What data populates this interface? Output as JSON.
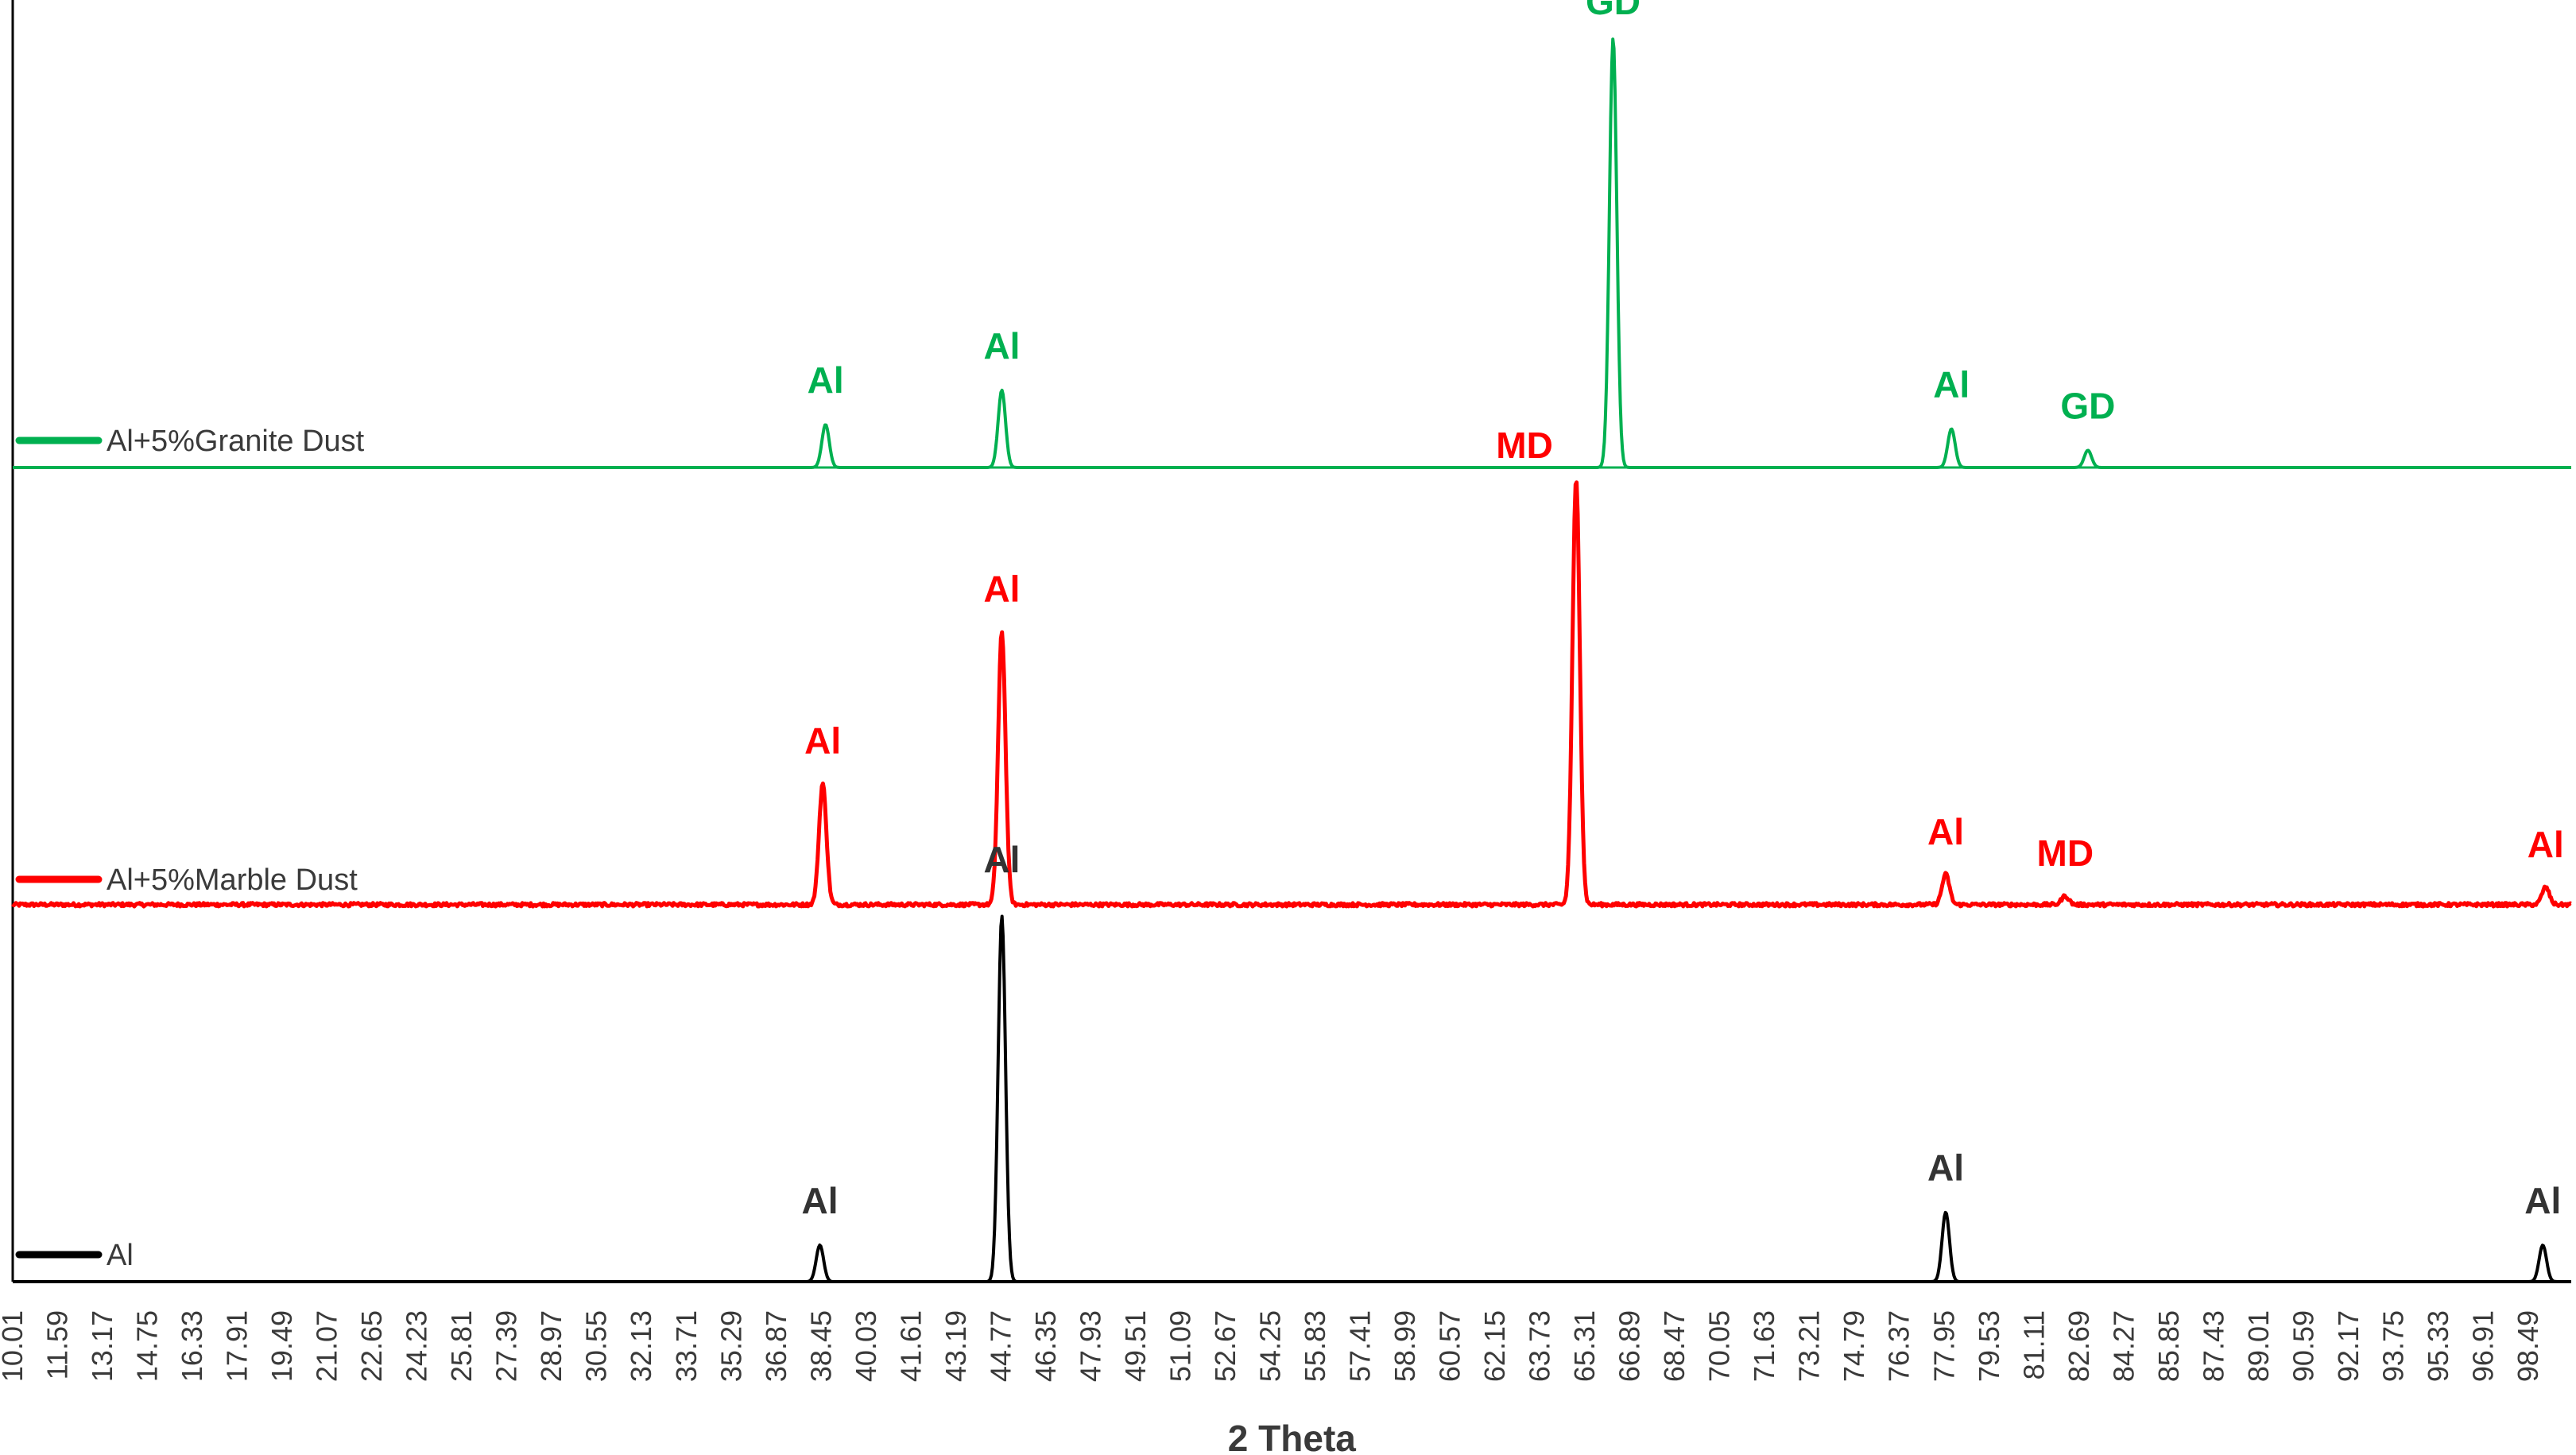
{
  "chart_data": {
    "type": "line",
    "xlabel": "2 Theta",
    "ylabel": "",
    "xlim": [
      10.01,
      100.0
    ],
    "x_tick_labels": [
      "10.01",
      "11.59",
      "13.17",
      "14.75",
      "16.33",
      "17.91",
      "19.49",
      "21.07",
      "22.65",
      "24.23",
      "25.81",
      "27.39",
      "28.97",
      "30.55",
      "32.13",
      "33.71",
      "35.29",
      "36.87",
      "38.45",
      "40.03",
      "41.61",
      "43.19",
      "44.77",
      "46.35",
      "47.93",
      "49.51",
      "51.09",
      "52.67",
      "54.25",
      "55.83",
      "57.41",
      "58.99",
      "60.57",
      "62.15",
      "63.73",
      "65.31",
      "66.89",
      "68.47",
      "70.05",
      "71.63",
      "73.21",
      "74.79",
      "76.37",
      "77.95",
      "79.53",
      "81.11",
      "82.69",
      "84.27",
      "85.85",
      "87.43",
      "89.01",
      "90.59",
      "92.17",
      "93.75",
      "95.33",
      "96.91",
      "98.49"
    ],
    "grid": false,
    "legend_position": "inside-left, one per trace",
    "series": [
      {
        "name": "Al+5%Granite Dust",
        "color": "#00b050",
        "noise": 0.0,
        "peaks": [
          {
            "x": 38.6,
            "height": 0.1,
            "label": "Al"
          },
          {
            "x": 44.8,
            "height": 0.18,
            "label": "Al"
          },
          {
            "x": 66.3,
            "height": 1.0,
            "label": "GD"
          },
          {
            "x": 78.2,
            "height": 0.09,
            "label": "Al"
          },
          {
            "x": 83.0,
            "height": 0.04,
            "label": "GD"
          }
        ]
      },
      {
        "name": "Al+5%Marble Dust",
        "color": "#ff0000",
        "noise": 0.008,
        "peaks": [
          {
            "x": 38.5,
            "height": 0.28,
            "label": "Al"
          },
          {
            "x": 44.8,
            "height": 0.63,
            "label": "Al"
          },
          {
            "x": 65.0,
            "height": 0.98,
            "label": "MD"
          },
          {
            "x": 78.0,
            "height": 0.07,
            "label": "Al"
          },
          {
            "x": 82.2,
            "height": 0.02,
            "label": "MD"
          },
          {
            "x": 99.1,
            "height": 0.04,
            "label": "Al"
          }
        ]
      },
      {
        "name": "Al",
        "color": "#000000",
        "noise": 0.0,
        "peaks": [
          {
            "x": 38.4,
            "height": 0.1,
            "label": "Al"
          },
          {
            "x": 44.8,
            "height": 1.0,
            "label": "Al"
          },
          {
            "x": 78.0,
            "height": 0.19,
            "label": "Al"
          },
          {
            "x": 99.0,
            "height": 0.1,
            "label": "Al"
          }
        ]
      }
    ]
  }
}
